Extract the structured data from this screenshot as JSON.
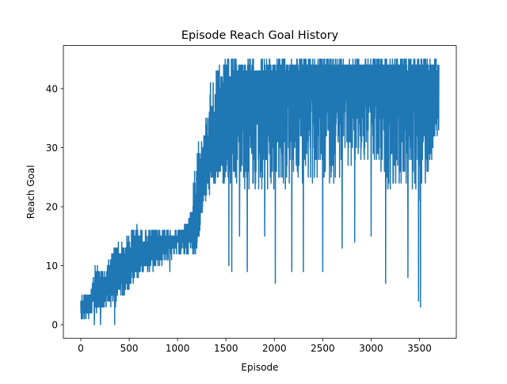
{
  "chart_data": {
    "type": "line",
    "title": "Episode Reach Goal History",
    "xlabel": "Episode",
    "ylabel": "Reach Goal",
    "xlim": [
      -180,
      3880
    ],
    "ylim": [
      -2.3,
      47.3
    ],
    "xticks": [
      0,
      500,
      1000,
      1500,
      2000,
      2500,
      3000,
      3500
    ],
    "yticks": [
      0,
      10,
      20,
      30,
      40
    ],
    "grid": false,
    "legend": "none",
    "series": [
      {
        "color": "#1f77b4",
        "x_start": 0,
        "x_end": 3700,
        "envelope": [
          {
            "x": 0,
            "low": 0,
            "high": 5,
            "typical": 2
          },
          {
            "x": 100,
            "low": 0,
            "high": 6,
            "typical": 3
          },
          {
            "x": 150,
            "low": 0,
            "high": 10,
            "typical": 5
          },
          {
            "x": 250,
            "low": 0,
            "high": 9,
            "typical": 6
          },
          {
            "x": 350,
            "low": 0,
            "high": 14,
            "typical": 7
          },
          {
            "x": 450,
            "low": 2,
            "high": 14,
            "typical": 9
          },
          {
            "x": 550,
            "low": 5,
            "high": 17,
            "typical": 10
          },
          {
            "x": 650,
            "low": 7,
            "high": 16,
            "typical": 11
          },
          {
            "x": 750,
            "low": 7,
            "high": 16,
            "typical": 12
          },
          {
            "x": 850,
            "low": 7,
            "high": 16,
            "typical": 14
          },
          {
            "x": 950,
            "low": 9,
            "high": 16,
            "typical": 14
          },
          {
            "x": 1050,
            "low": 9,
            "high": 16,
            "typical": 15
          },
          {
            "x": 1150,
            "low": 9,
            "high": 20,
            "typical": 15
          },
          {
            "x": 1200,
            "low": 9,
            "high": 33,
            "typical": 16
          },
          {
            "x": 1260,
            "low": 17,
            "high": 31,
            "typical": 23
          },
          {
            "x": 1350,
            "low": 19,
            "high": 43,
            "typical": 27
          },
          {
            "x": 1450,
            "low": 19,
            "high": 44,
            "typical": 31
          },
          {
            "x": 1500,
            "low": 12,
            "high": 45,
            "typical": 36
          },
          {
            "x": 1600,
            "low": 9,
            "high": 45,
            "typical": 38
          },
          {
            "x": 1800,
            "low": 9,
            "high": 45,
            "typical": 38
          },
          {
            "x": 2000,
            "low": 7,
            "high": 45,
            "typical": 40
          },
          {
            "x": 2200,
            "low": 9,
            "high": 45,
            "typical": 41
          },
          {
            "x": 2400,
            "low": 9,
            "high": 45,
            "typical": 42
          },
          {
            "x": 2600,
            "low": 9,
            "high": 45,
            "typical": 42
          },
          {
            "x": 2800,
            "low": 13,
            "high": 45,
            "typical": 42
          },
          {
            "x": 3000,
            "low": 15,
            "high": 45,
            "typical": 42
          },
          {
            "x": 3150,
            "low": 7,
            "high": 45,
            "typical": 42
          },
          {
            "x": 3350,
            "low": 8,
            "high": 45,
            "typical": 42
          },
          {
            "x": 3500,
            "low": 3,
            "high": 45,
            "typical": 42
          },
          {
            "x": 3700,
            "low": 24,
            "high": 45,
            "typical": 40
          }
        ],
        "dips": [
          {
            "x": 140,
            "y": 0
          },
          {
            "x": 205,
            "y": 0
          },
          {
            "x": 350,
            "y": 0
          },
          {
            "x": 920,
            "y": 9
          },
          {
            "x": 1530,
            "y": 10
          },
          {
            "x": 1560,
            "y": 9
          },
          {
            "x": 1640,
            "y": 15
          },
          {
            "x": 1720,
            "y": 9
          },
          {
            "x": 1900,
            "y": 15
          },
          {
            "x": 2010,
            "y": 7
          },
          {
            "x": 2180,
            "y": 9
          },
          {
            "x": 2300,
            "y": 9
          },
          {
            "x": 2500,
            "y": 9
          },
          {
            "x": 2700,
            "y": 13
          },
          {
            "x": 2830,
            "y": 14
          },
          {
            "x": 3000,
            "y": 15
          },
          {
            "x": 3150,
            "y": 7
          },
          {
            "x": 3380,
            "y": 8
          },
          {
            "x": 3490,
            "y": 4
          },
          {
            "x": 3510,
            "y": 3
          },
          {
            "x": 3560,
            "y": 24
          }
        ]
      }
    ]
  }
}
